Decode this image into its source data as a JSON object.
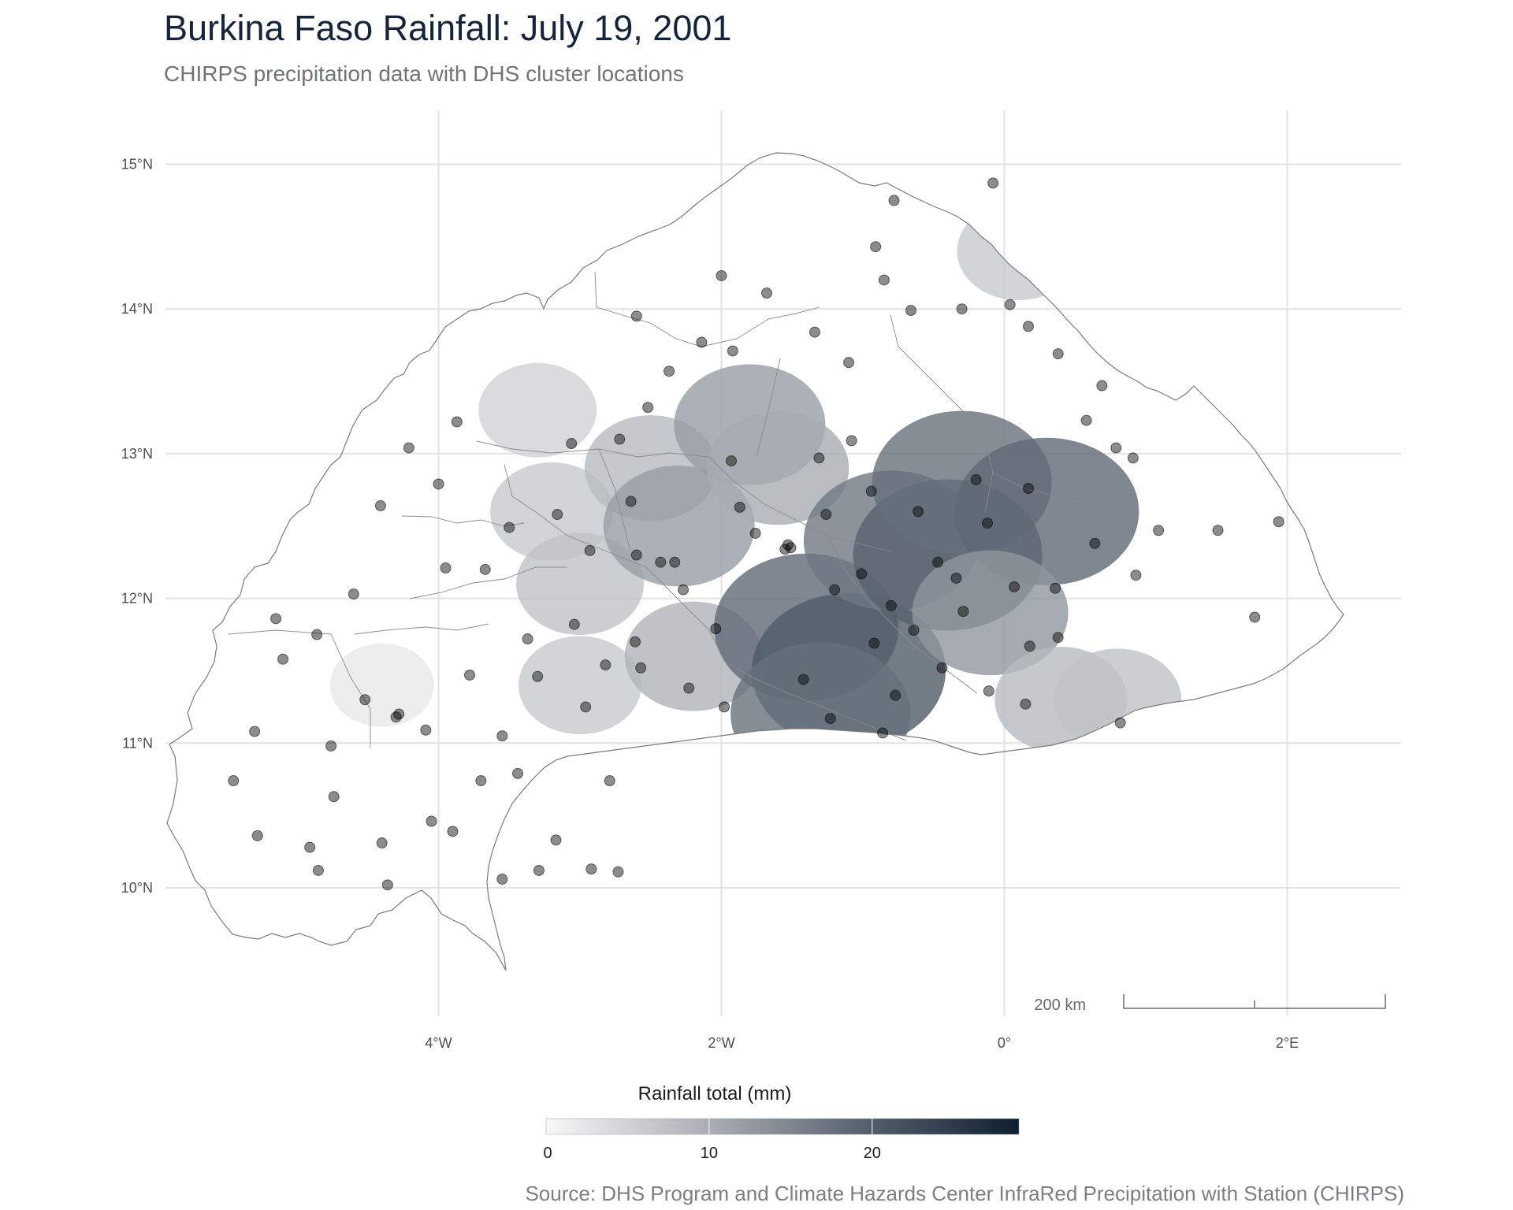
{
  "header": {
    "title": "Burkina Faso Rainfall: July 19, 2001",
    "subtitle": "CHIRPS precipitation data with DHS cluster locations"
  },
  "source": "Source: DHS Program and Climate Hazards Center InfraRed Precipitation with Station (CHIRPS)",
  "axes": {
    "x_ticks": [
      "4°W",
      "2°W",
      "0°",
      "2°E"
    ],
    "y_ticks": [
      "15°N",
      "14°N",
      "13°N",
      "12°N",
      "11°N",
      "10°N"
    ]
  },
  "legend": {
    "title": "Rainfall total (mm)",
    "ticks": [
      "0",
      "10",
      "20"
    ],
    "min": 0,
    "max": 29,
    "color_low": "#f7f7f7",
    "color_high": "#0f1f30"
  },
  "scale_bar": {
    "label": "200 km"
  },
  "colors": {
    "grid": "#e6e6e6",
    "border": "#7a7a7a",
    "point": "#000000",
    "title": "#15243a"
  },
  "chart_data": {
    "type": "map",
    "region": "Burkina Faso",
    "lon_range": [
      -5.6,
      2.8
    ],
    "lat_range": [
      9.2,
      15.4
    ],
    "rain_cells": [
      {
        "lon": -4.4,
        "lat": 11.4,
        "mm": 2
      },
      {
        "lon": -3.3,
        "lat": 13.3,
        "mm": 5
      },
      {
        "lon": -3.2,
        "lat": 12.6,
        "mm": 6
      },
      {
        "lon": -3.0,
        "lat": 12.1,
        "mm": 7
      },
      {
        "lon": -3.0,
        "lat": 11.4,
        "mm": 6
      },
      {
        "lon": -2.9,
        "lat": 10.4,
        "mm": 3
      },
      {
        "lon": -2.5,
        "lat": 12.9,
        "mm": 8
      },
      {
        "lon": -2.3,
        "lat": 12.5,
        "mm": 12
      },
      {
        "lon": -2.2,
        "lat": 11.6,
        "mm": 9
      },
      {
        "lon": -1.8,
        "lat": 13.2,
        "mm": 12
      },
      {
        "lon": -1.6,
        "lat": 12.9,
        "mm": 10
      },
      {
        "lon": -1.4,
        "lat": 11.8,
        "mm": 19
      },
      {
        "lon": -1.1,
        "lat": 11.5,
        "mm": 21
      },
      {
        "lon": -1.3,
        "lat": 11.2,
        "mm": 18
      },
      {
        "lon": -0.8,
        "lat": 12.4,
        "mm": 17
      },
      {
        "lon": -0.4,
        "lat": 12.3,
        "mm": 20
      },
      {
        "lon": -0.3,
        "lat": 12.8,
        "mm": 18
      },
      {
        "lon": 0.3,
        "lat": 12.6,
        "mm": 19
      },
      {
        "lon": -0.1,
        "lat": 11.9,
        "mm": 13
      },
      {
        "lon": 0.1,
        "lat": 14.4,
        "mm": 6
      },
      {
        "lon": 0.4,
        "lat": 11.3,
        "mm": 8
      },
      {
        "lon": 0.8,
        "lat": 11.3,
        "mm": 7
      }
    ],
    "dhs_clusters": [
      {
        "lon": -1.53,
        "lat": 12.37
      },
      {
        "lon": -1.51,
        "lat": 12.35
      },
      {
        "lon": -1.55,
        "lat": 12.34
      },
      {
        "lon": -4.3,
        "lat": 11.18
      },
      {
        "lon": -4.28,
        "lat": 11.2
      },
      {
        "lon": -4.74,
        "lat": 10.63
      },
      {
        "lon": -2.37,
        "lat": 13.57
      },
      {
        "lon": -2.33,
        "lat": 12.25
      },
      {
        "lon": -1.08,
        "lat": 13.09
      },
      {
        "lon": -1.42,
        "lat": 11.44
      },
      {
        "lon": -3.17,
        "lat": 10.33
      },
      {
        "lon": -2.96,
        "lat": 11.25
      },
      {
        "lon": 1.51,
        "lat": 12.47
      },
      {
        "lon": 0.36,
        "lat": 12.07
      },
      {
        "lon": -0.61,
        "lat": 12.6
      },
      {
        "lon": -0.47,
        "lat": 12.25
      },
      {
        "lon": -1.23,
        "lat": 11.17
      },
      {
        "lon": -0.86,
        "lat": 11.07
      },
      {
        "lon": 0.82,
        "lat": 11.14
      },
      {
        "lon": -3.06,
        "lat": 13.07
      },
      {
        "lon": -1.2,
        "lat": 12.06
      },
      {
        "lon": -0.78,
        "lat": 14.75
      },
      {
        "lon": -0.08,
        "lat": 14.87
      },
      {
        "lon": 0.04,
        "lat": 14.03
      },
      {
        "lon": -1.68,
        "lat": 14.11
      },
      {
        "lon": -2.0,
        "lat": 14.23
      },
      {
        "lon": -2.6,
        "lat": 13.95
      },
      {
        "lon": -3.87,
        "lat": 13.22
      },
      {
        "lon": -4.21,
        "lat": 13.04
      },
      {
        "lon": -4.0,
        "lat": 12.79
      },
      {
        "lon": -4.41,
        "lat": 12.64
      },
      {
        "lon": -4.6,
        "lat": 12.03
      },
      {
        "lon": -5.15,
        "lat": 11.86
      },
      {
        "lon": -4.86,
        "lat": 11.75
      },
      {
        "lon": -5.1,
        "lat": 11.58
      },
      {
        "lon": -5.3,
        "lat": 11.08
      },
      {
        "lon": -5.45,
        "lat": 10.74
      },
      {
        "lon": -5.28,
        "lat": 10.36
      },
      {
        "lon": -4.91,
        "lat": 10.28
      },
      {
        "lon": -4.85,
        "lat": 10.12
      },
      {
        "lon": -4.4,
        "lat": 10.31
      },
      {
        "lon": -4.36,
        "lat": 10.02
      },
      {
        "lon": -4.05,
        "lat": 10.46
      },
      {
        "lon": -3.9,
        "lat": 10.39
      },
      {
        "lon": -3.55,
        "lat": 10.06
      },
      {
        "lon": -3.29,
        "lat": 10.12
      },
      {
        "lon": -2.92,
        "lat": 10.13
      },
      {
        "lon": -2.73,
        "lat": 10.11
      },
      {
        "lon": -2.79,
        "lat": 10.74
      },
      {
        "lon": -3.44,
        "lat": 10.79
      },
      {
        "lon": -3.7,
        "lat": 10.74
      },
      {
        "lon": -4.09,
        "lat": 11.09
      },
      {
        "lon": -4.52,
        "lat": 11.3
      },
      {
        "lon": -4.76,
        "lat": 10.98
      },
      {
        "lon": -2.04,
        "lat": 11.79
      },
      {
        "lon": -0.92,
        "lat": 11.69
      },
      {
        "lon": 0.38,
        "lat": 11.73
      },
      {
        "lon": 1.77,
        "lat": 11.87
      },
      {
        "lon": 1.94,
        "lat": 12.53
      },
      {
        "lon": 1.09,
        "lat": 12.47
      },
      {
        "lon": 0.93,
        "lat": 12.16
      },
      {
        "lon": 0.91,
        "lat": 12.97
      },
      {
        "lon": 0.58,
        "lat": 13.23
      },
      {
        "lon": 0.69,
        "lat": 13.47
      },
      {
        "lon": 0.79,
        "lat": 13.04
      },
      {
        "lon": 0.38,
        "lat": 13.69
      },
      {
        "lon": 0.17,
        "lat": 13.88
      },
      {
        "lon": -0.3,
        "lat": 14.0
      },
      {
        "lon": -0.66,
        "lat": 13.99
      },
      {
        "lon": -0.85,
        "lat": 14.2
      },
      {
        "lon": -0.91,
        "lat": 14.43
      },
      {
        "lon": -1.1,
        "lat": 13.63
      },
      {
        "lon": -1.34,
        "lat": 13.84
      },
      {
        "lon": -1.92,
        "lat": 13.71
      },
      {
        "lon": -2.14,
        "lat": 13.77
      },
      {
        "lon": -2.52,
        "lat": 13.32
      },
      {
        "lon": -2.72,
        "lat": 13.1
      },
      {
        "lon": -3.16,
        "lat": 12.58
      },
      {
        "lon": -3.5,
        "lat": 12.49
      },
      {
        "lon": -3.67,
        "lat": 12.2
      },
      {
        "lon": -3.95,
        "lat": 12.21
      },
      {
        "lon": -3.37,
        "lat": 11.72
      },
      {
        "lon": -3.3,
        "lat": 11.46
      },
      {
        "lon": -3.78,
        "lat": 11.47
      },
      {
        "lon": -3.55,
        "lat": 11.05
      },
      {
        "lon": -2.82,
        "lat": 11.54
      },
      {
        "lon": -2.61,
        "lat": 11.7
      },
      {
        "lon": -2.27,
        "lat": 12.06
      },
      {
        "lon": -1.87,
        "lat": 12.63
      },
      {
        "lon": -1.76,
        "lat": 12.45
      },
      {
        "lon": -1.26,
        "lat": 12.58
      },
      {
        "lon": -0.94,
        "lat": 12.74
      },
      {
        "lon": -1.31,
        "lat": 12.97
      },
      {
        "lon": -1.93,
        "lat": 12.95
      },
      {
        "lon": -2.64,
        "lat": 12.67
      },
      {
        "lon": -2.93,
        "lat": 12.33
      },
      {
        "lon": -0.12,
        "lat": 12.52
      },
      {
        "lon": -0.2,
        "lat": 12.82
      },
      {
        "lon": 0.17,
        "lat": 12.76
      },
      {
        "lon": 0.64,
        "lat": 12.38
      },
      {
        "lon": 0.07,
        "lat": 12.08
      },
      {
        "lon": -0.29,
        "lat": 11.91
      },
      {
        "lon": -0.64,
        "lat": 11.78
      },
      {
        "lon": -0.44,
        "lat": 11.52
      },
      {
        "lon": -0.11,
        "lat": 11.36
      },
      {
        "lon": 0.18,
        "lat": 11.67
      },
      {
        "lon": 0.15,
        "lat": 11.27
      },
      {
        "lon": -0.77,
        "lat": 11.33
      },
      {
        "lon": -1.98,
        "lat": 11.25
      },
      {
        "lon": -2.23,
        "lat": 11.38
      },
      {
        "lon": -2.57,
        "lat": 11.52
      },
      {
        "lon": -3.04,
        "lat": 11.82
      },
      {
        "lon": -2.6,
        "lat": 12.3
      },
      {
        "lon": -2.43,
        "lat": 12.25
      },
      {
        "lon": -1.01,
        "lat": 12.17
      },
      {
        "lon": -0.8,
        "lat": 11.95
      },
      {
        "lon": -0.34,
        "lat": 12.14
      }
    ]
  }
}
